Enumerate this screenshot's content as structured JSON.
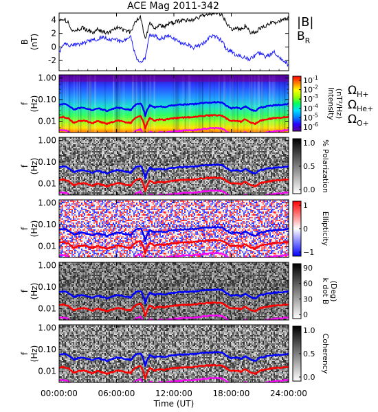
{
  "title": "ACE Mag 2011-342",
  "colors": {
    "field_total": "#000000",
    "field_radial": "#1a1aff",
    "h_plus": "#0000ff",
    "he_plus": "#ff0000",
    "o_plus": "#ff00ff",
    "bg": "#ffffff"
  },
  "chart_data": [
    {
      "type": "line",
      "panel": "B-field",
      "ylabel_main": "B",
      "ylabel_unit": "(nT)",
      "ylim": [
        -3.5,
        5
      ],
      "yticks": [
        "4",
        "2",
        "0",
        "-2"
      ],
      "ytick_values": [
        4,
        2,
        0,
        -2
      ],
      "legend": {
        "total": "|B|",
        "radial_main": "B",
        "radial_sub": "R"
      },
      "series": [
        {
          "name": "|B|",
          "x_hours": [
            0,
            0.5,
            1,
            1.5,
            2,
            2.5,
            3,
            3.5,
            4,
            4.5,
            5,
            5.5,
            6,
            6.5,
            7,
            7.5,
            8,
            8.5,
            9,
            9.5,
            10,
            10.5,
            11,
            11.5,
            12,
            12.5,
            13,
            13.5,
            14,
            14.5,
            15,
            15.5,
            16,
            16.5,
            17,
            17.5,
            18,
            18.5,
            19,
            19.5,
            20,
            20.5,
            21,
            21.5,
            22,
            22.5,
            23,
            23.5,
            24
          ],
          "values": [
            3.8,
            4.2,
            3.5,
            2.2,
            2.6,
            2.8,
            2.5,
            2.1,
            2.6,
            2.3,
            2.0,
            2.4,
            2.8,
            2.6,
            2.4,
            2.2,
            3.8,
            4.5,
            1.2,
            3.6,
            2.8,
            3.2,
            3.0,
            3.4,
            3.6,
            3.8,
            3.9,
            4.0,
            4.0,
            4.3,
            4.6,
            4.8,
            4.9,
            5.0,
            4.8,
            3.5,
            2.6,
            2.8,
            2.5,
            3.2,
            2.2,
            2.0,
            2.8,
            3.0,
            3.4,
            3.6,
            3.8,
            4.0,
            4.2
          ]
        },
        {
          "name": "B_R",
          "x_hours": [
            0,
            0.5,
            1,
            1.5,
            2,
            2.5,
            3,
            3.5,
            4,
            4.5,
            5,
            5.5,
            6,
            6.5,
            7,
            7.5,
            8,
            8.5,
            9,
            9.5,
            10,
            10.5,
            11,
            11.5,
            12,
            12.5,
            13,
            13.5,
            14,
            14.5,
            15,
            15.5,
            16,
            16.5,
            17,
            17.5,
            18,
            18.5,
            19,
            19.5,
            20,
            20.5,
            21,
            21.5,
            22,
            22.5,
            23,
            23.5,
            24
          ],
          "values": [
            -0.8,
            0.6,
            0.2,
            0.4,
            0.3,
            0.6,
            0.8,
            1.0,
            1.1,
            1.5,
            1.3,
            1.1,
            1.0,
            0.8,
            1.2,
            1.4,
            -1.4,
            -2.4,
            -1.6,
            1.8,
            1.6,
            1.2,
            1.4,
            1.6,
            1.2,
            0.8,
            0.6,
            0.4,
            -0.2,
            0.2,
            0.4,
            1.2,
            1.6,
            1.4,
            1.0,
            -0.4,
            -0.6,
            -1.2,
            -1.4,
            -1.6,
            -1.8,
            -1.2,
            -0.8,
            -1.4,
            -1.2,
            -0.8,
            -1.6,
            -2.2,
            -2.6
          ]
        }
      ]
    },
    {
      "type": "heatmap",
      "panel": "intensity",
      "ylabel_main": "f",
      "ylabel_unit": "(Hz)",
      "ylim": [
        0.003,
        1.4
      ],
      "yscale": "log",
      "yticks": [
        "1.00",
        "0.10",
        "0.01"
      ],
      "colorbar": {
        "label_lines": [
          "Intensity",
          "(nT²/Hz)"
        ],
        "ticks": [
          {
            "base": "10",
            "exp": "-1"
          },
          {
            "base": "10",
            "exp": "-2"
          },
          {
            "base": "10",
            "exp": "-3"
          },
          {
            "base": "10",
            "exp": "-4"
          },
          {
            "base": "10",
            "exp": "-5"
          },
          {
            "base": "10",
            "exp": "-6"
          }
        ],
        "colors": [
          "#5a0090",
          "#2a00ff",
          "#0080ff",
          "#00e0ff",
          "#00ff60",
          "#a0ff00",
          "#ffff00",
          "#ff8000",
          "#ff0000"
        ]
      },
      "gyro_legend": [
        {
          "glyph": "Ω",
          "sub": "H+",
          "color": "#0000ff"
        },
        {
          "glyph": "Ω",
          "sub": "He+",
          "color": "#ff0000"
        },
        {
          "glyph": "Ω",
          "sub": "O+",
          "color": "#ff00ff"
        }
      ]
    },
    {
      "type": "heatmap",
      "panel": "polarization",
      "ylabel_main": "f",
      "ylabel_unit": "(Hz)",
      "yscale": "log",
      "yticks": [
        "1.00",
        "0.10",
        "0.01"
      ],
      "colorbar": {
        "label_lines": [
          "% Polarization"
        ],
        "ticks": [
          {
            "base": "1.0"
          },
          {
            "base": "0.5"
          },
          {
            "base": "0.0"
          }
        ],
        "colors": [
          "#ffffff",
          "#000000"
        ]
      }
    },
    {
      "type": "heatmap",
      "panel": "ellipticity",
      "ylabel_main": "f",
      "ylabel_unit": "(Hz)",
      "yscale": "log",
      "yticks": [
        "1.00",
        "0.10",
        "0.01"
      ],
      "colorbar": {
        "label_lines": [
          "Ellipticity"
        ],
        "ticks": [
          {
            "base": "1"
          },
          {
            "base": "0"
          },
          {
            "base": "−1"
          }
        ],
        "colors": [
          "#0000ff",
          "#ffffff",
          "#ff0000"
        ]
      }
    },
    {
      "type": "heatmap",
      "panel": "k-dot-B",
      "ylabel_main": "f",
      "ylabel_unit": "(Hz)",
      "yscale": "log",
      "yticks": [
        "1.00",
        "0.10",
        "0.01"
      ],
      "colorbar": {
        "label_lines": [
          "k dot B",
          "(Deg)"
        ],
        "ticks": [
          {
            "base": "90"
          },
          {
            "base": "60"
          },
          {
            "base": "30"
          },
          {
            "base": "0"
          }
        ],
        "colors": [
          "#ffffff",
          "#000000"
        ]
      }
    },
    {
      "type": "heatmap",
      "panel": "coherency",
      "ylabel_main": "f",
      "ylabel_unit": "(Hz)",
      "yscale": "log",
      "yticks": [
        "1.00",
        "0.10",
        "0.01"
      ],
      "colorbar": {
        "label_lines": [
          "Coherency"
        ],
        "ticks": [
          {
            "base": "1.0"
          },
          {
            "base": "0.5"
          },
          {
            "base": "0.0"
          }
        ],
        "colors": [
          "#ffffff",
          "#000000"
        ]
      }
    }
  ],
  "gyrofrequency_lines": {
    "x_hours": [
      0,
      0.5,
      1,
      1.5,
      2,
      2.5,
      3,
      3.5,
      4,
      4.5,
      5,
      5.5,
      6,
      6.5,
      7,
      7.5,
      8,
      8.5,
      9,
      9.5,
      10,
      10.5,
      11,
      11.5,
      12,
      12.5,
      13,
      13.5,
      14,
      14.5,
      15,
      15.5,
      16,
      16.5,
      17,
      17.5,
      18,
      18.5,
      19,
      19.5,
      20,
      20.5,
      21,
      21.5,
      22,
      22.5,
      23,
      23.5,
      24
    ],
    "h_plus_hz": [
      0.058,
      0.064,
      0.053,
      0.034,
      0.039,
      0.043,
      0.038,
      0.032,
      0.04,
      0.035,
      0.03,
      0.036,
      0.043,
      0.04,
      0.036,
      0.033,
      0.058,
      0.069,
      0.018,
      0.055,
      0.043,
      0.049,
      0.046,
      0.052,
      0.055,
      0.058,
      0.059,
      0.061,
      0.061,
      0.066,
      0.07,
      0.073,
      0.075,
      0.076,
      0.073,
      0.053,
      0.04,
      0.043,
      0.038,
      0.049,
      0.034,
      0.03,
      0.043,
      0.046,
      0.052,
      0.055,
      0.058,
      0.061,
      0.064
    ],
    "he_plus_hz": [
      0.0145,
      0.016,
      0.0133,
      0.0085,
      0.0098,
      0.0108,
      0.0095,
      0.008,
      0.01,
      0.0088,
      0.0075,
      0.009,
      0.0108,
      0.01,
      0.009,
      0.0083,
      0.0145,
      0.0173,
      0.0045,
      0.0138,
      0.0108,
      0.0123,
      0.0115,
      0.013,
      0.0138,
      0.0145,
      0.0148,
      0.0153,
      0.0153,
      0.0165,
      0.0175,
      0.0183,
      0.0188,
      0.019,
      0.0183,
      0.0133,
      0.01,
      0.0108,
      0.0095,
      0.0123,
      0.0085,
      0.0075,
      0.0108,
      0.0115,
      0.013,
      0.0138,
      0.0145,
      0.0153,
      0.016
    ],
    "o_plus_hz": [
      0.0036,
      0.004,
      0.0033,
      0.0021,
      0.0024,
      0.0027,
      0.0024,
      0.002,
      0.0025,
      0.0022,
      0.0019,
      0.0022,
      0.0027,
      0.0025,
      0.0022,
      0.0021,
      0.0036,
      0.0043,
      0.0011,
      0.0034,
      0.0027,
      0.0031,
      0.0029,
      0.0032,
      0.0034,
      0.0036,
      0.0037,
      0.0038,
      0.0038,
      0.0041,
      0.0044,
      0.0046,
      0.0047,
      0.0048,
      0.0046,
      0.0033,
      0.0025,
      0.0027,
      0.0024,
      0.0031,
      0.0021,
      0.0019,
      0.0027,
      0.0029,
      0.0032,
      0.0034,
      0.0036,
      0.0038,
      0.004
    ]
  },
  "x_axis": {
    "label": "Time (UT)",
    "ticks": [
      "00:00:00",
      "06:00:00",
      "12:00:00",
      "18:00:00",
      "24:00:00"
    ],
    "tick_hours": [
      0,
      6,
      12,
      18,
      24
    ],
    "range_hours": [
      0,
      24
    ]
  }
}
